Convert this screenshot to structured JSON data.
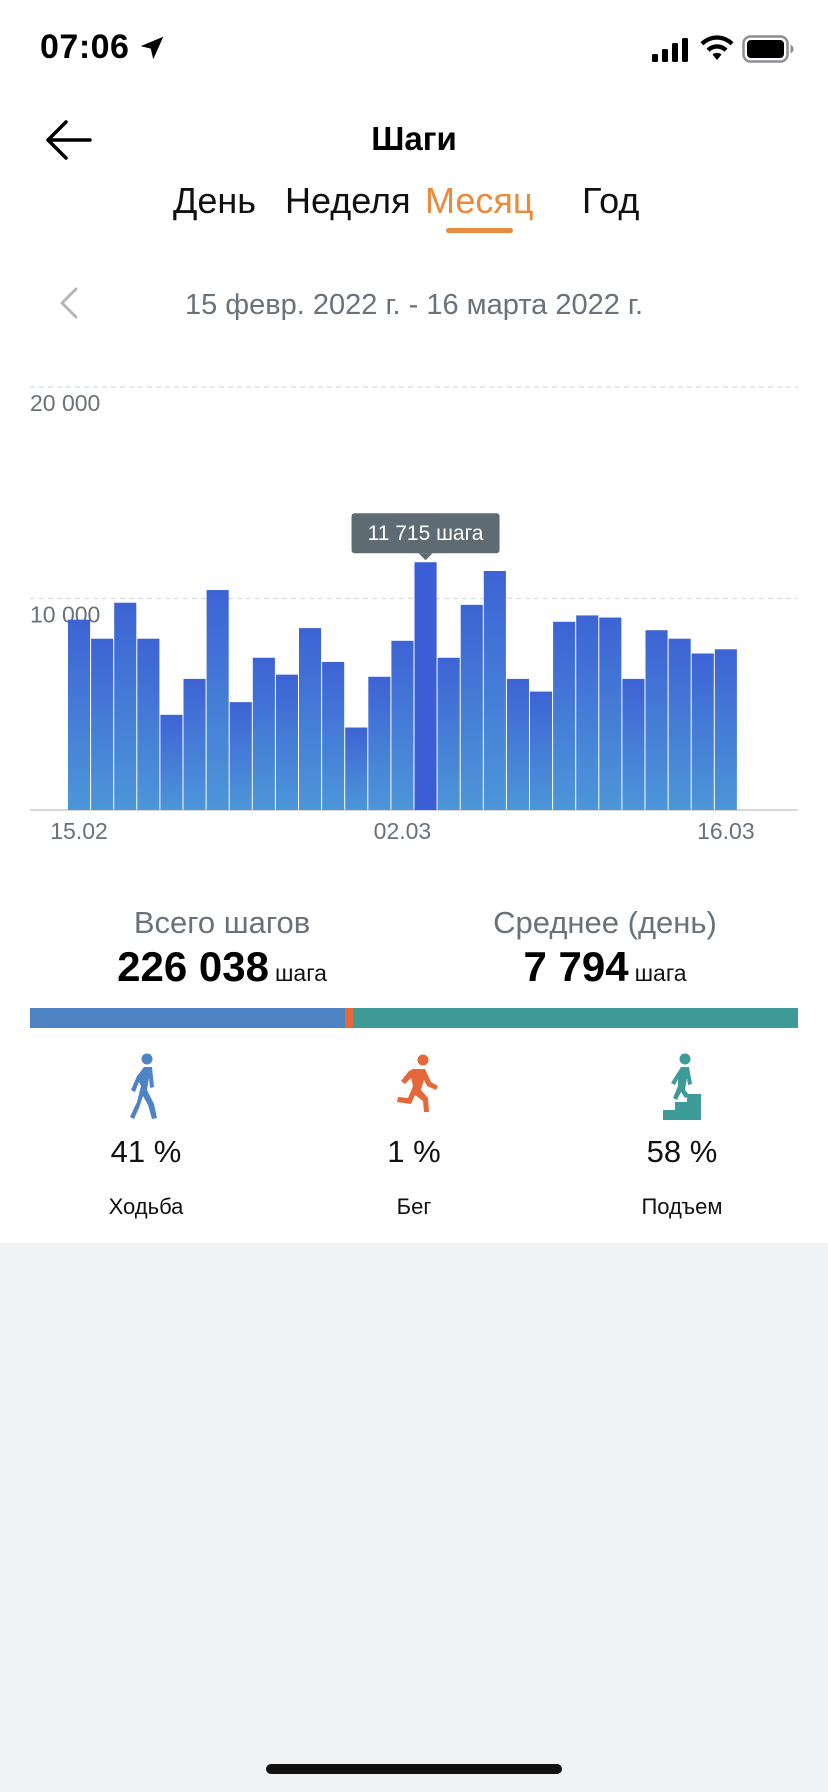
{
  "status_bar": {
    "time": "07:06",
    "icons": [
      "location-arrow-icon",
      "signal-icon",
      "wifi-icon",
      "battery-icon"
    ]
  },
  "header": {
    "title": "Шаги",
    "back_icon": "arrow-left-icon"
  },
  "tabs": [
    {
      "label": "День",
      "active": false
    },
    {
      "label": "Неделя",
      "active": false
    },
    {
      "label": "Месяц",
      "active": true
    },
    {
      "label": "Год",
      "active": false
    }
  ],
  "date_range": {
    "label": "15 февр. 2022 г. - 16 марта 2022 г.",
    "prev_icon": "chevron-left-icon"
  },
  "chart_data": {
    "type": "bar",
    "ylabel": "",
    "xlabel": "",
    "ylim": [
      0,
      20000
    ],
    "yticks": [
      {
        "value": 20000,
        "label": "20 000"
      },
      {
        "value": 10000,
        "label": "10 000"
      }
    ],
    "x_tick_labels": [
      "15.02",
      "02.03",
      "16.03"
    ],
    "x_tick_indices": [
      0,
      14,
      28
    ],
    "values": [
      9000,
      8100,
      9800,
      8100,
      4500,
      6200,
      10400,
      5100,
      7200,
      6400,
      8600,
      7000,
      3900,
      6300,
      8000,
      11715,
      7200,
      9700,
      11300,
      6200,
      5600,
      8900,
      9200,
      9100,
      6200,
      8500,
      8100,
      7400,
      7600
    ],
    "highlight_index": 15,
    "tooltip": "11 715 шага",
    "bar_color_top": "#3d63d4",
    "bar_color_bottom": "#4d96d8",
    "highlight_color": "#3b5ed6"
  },
  "stats": {
    "total_label": "Всего шагов",
    "total_value": "226 038",
    "total_unit": "шага",
    "avg_label": "Среднее (день)",
    "avg_value": "7 794",
    "avg_unit": "шага"
  },
  "distribution": {
    "walk_percent": 41,
    "run_percent": 1,
    "climb_percent": 58,
    "colors": {
      "walk": "#4f84c4",
      "run": "#e5683a",
      "climb": "#3f9b98"
    }
  },
  "activities": [
    {
      "icon": "walking-person-icon",
      "percent": "41 %",
      "label": "Ходьба"
    },
    {
      "icon": "running-person-icon",
      "percent": "1 %",
      "label": "Бег"
    },
    {
      "icon": "stair-climbing-person-icon",
      "percent": "58 %",
      "label": "Подъем"
    }
  ]
}
